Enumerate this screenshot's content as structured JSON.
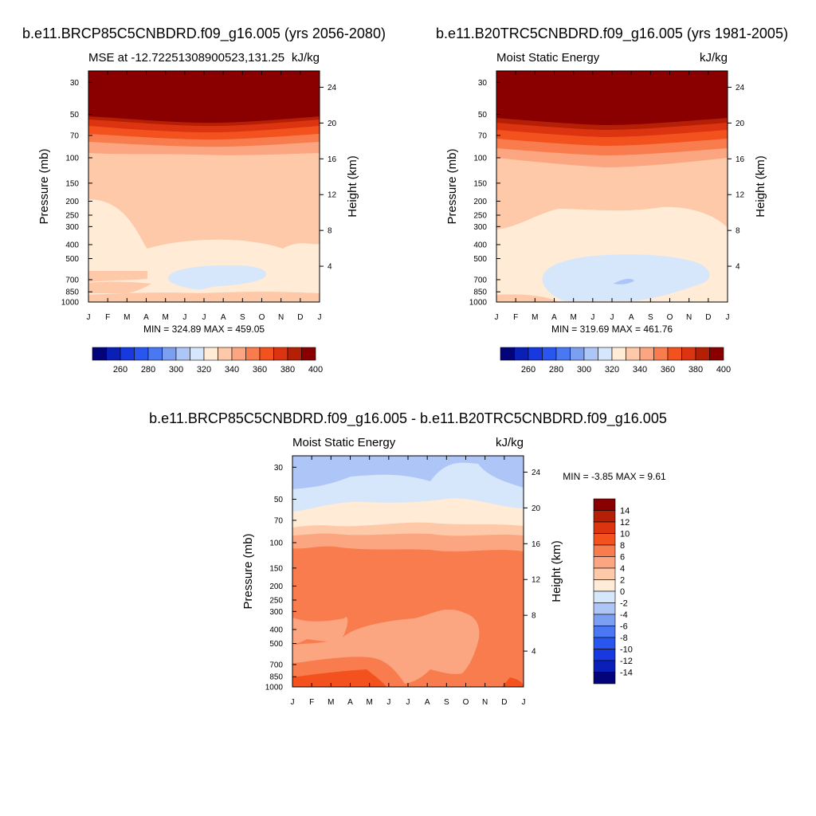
{
  "month_labels": [
    "J",
    "F",
    "M",
    "A",
    "M",
    "J",
    "J",
    "A",
    "S",
    "O",
    "N",
    "D",
    "J"
  ],
  "pressure_ticks": [
    30,
    50,
    70,
    100,
    150,
    200,
    250,
    300,
    400,
    500,
    700,
    850,
    1000
  ],
  "pressure_tick_labels": [
    "30",
    "50",
    "70",
    "100",
    "150",
    "200",
    "250",
    "300",
    "400",
    "500",
    "700",
    "850",
    "1000"
  ],
  "height_ticks": [
    24,
    20,
    16,
    12,
    8,
    4
  ],
  "height_tick_labels": [
    "24",
    "20",
    "16",
    "12",
    "8",
    "4"
  ],
  "chart_data": [
    {
      "id": "panel-rcp85",
      "type": "contour",
      "title": "b.e11.BRCP85C5CNBDRD.f09_g16.005 (yrs 2056-2080)",
      "left_label": "MSE at -12.72251308900523,131.25",
      "units": "kJ/kg",
      "ylabel": "Pressure (mb)",
      "ylabel_right": "Height (km)",
      "stats": "MIN = 324.89 MAX = 459.05",
      "levels": [
        250,
        260,
        270,
        280,
        290,
        300,
        310,
        320,
        330,
        340,
        350,
        360,
        370,
        380,
        390,
        400
      ],
      "colorbar_labels": [
        "260",
        "280",
        "300",
        "320",
        "340",
        "360",
        "380",
        "400"
      ],
      "colors": [
        "#03037a",
        "#0a1fb8",
        "#1838e0",
        "#2a56f0",
        "#4a78f2",
        "#7d9ff2",
        "#aec6f7",
        "#d6e6fb",
        "#ffebd6",
        "#fdc9a8",
        "#fba680",
        "#f97c4e",
        "#f3521f",
        "#dc3410",
        "#b51f05",
        "#8a0000"
      ],
      "region_values": {
        "top": "> 400",
        "upper_band": "350-400",
        "mid": "340-350",
        "low": "330-340",
        "pool": "320-330",
        "surface": "340-350"
      }
    },
    {
      "id": "panel-b20tr",
      "type": "contour",
      "title": "b.e11.B20TRC5CNBDRD.f09_g16.005 (yrs 1981-2005)",
      "left_label": "Moist Static Energy",
      "units": "kJ/kg",
      "ylabel": "Pressure (mb)",
      "ylabel_right": "Height (km)",
      "stats": "MIN = 319.69 MAX = 461.76",
      "levels": [
        250,
        260,
        270,
        280,
        290,
        300,
        310,
        320,
        330,
        340,
        350,
        360,
        370,
        380,
        390,
        400
      ],
      "colorbar_labels": [
        "260",
        "280",
        "300",
        "320",
        "340",
        "360",
        "380",
        "400"
      ],
      "colors": [
        "#03037a",
        "#0a1fb8",
        "#1838e0",
        "#2a56f0",
        "#4a78f2",
        "#7d9ff2",
        "#aec6f7",
        "#d6e6fb",
        "#ffebd6",
        "#fdc9a8",
        "#fba680",
        "#f97c4e",
        "#f3521f",
        "#dc3410",
        "#b51f05",
        "#8a0000"
      ],
      "region_values": {
        "top": "> 400",
        "upper_band": "350-400",
        "mid": "340-350",
        "low": "330-340",
        "pool": "320-330"
      }
    },
    {
      "id": "panel-diff",
      "type": "contour",
      "title": "b.e11.BRCP85C5CNBDRD.f09_g16.005 - b.e11.B20TRC5CNBDRD.f09_g16.005",
      "left_label": "Moist Static Energy",
      "units": "kJ/kg",
      "ylabel": "Pressure (mb)",
      "ylabel_right": "Height (km)",
      "stats": "MIN =  -3.85 MAX =   9.61",
      "levels": [
        -14,
        -12,
        -10,
        -8,
        -6,
        -4,
        -2,
        0,
        2,
        4,
        6,
        8,
        10,
        12,
        14
      ],
      "colorbar_labels": [
        "14",
        "12",
        "10",
        "8",
        "6",
        "4",
        "2",
        "0",
        "-2",
        "-4",
        "-6",
        "-8",
        "-10",
        "-12",
        "-14"
      ],
      "colors": [
        "#03037a",
        "#0a1fb8",
        "#1838e0",
        "#2a56f0",
        "#4a78f2",
        "#7d9ff2",
        "#aec6f7",
        "#d6e6fb",
        "#ffebd6",
        "#fdc9a8",
        "#fba680",
        "#f97c4e",
        "#f3521f",
        "#dc3410",
        "#b51f05",
        "#8a0000"
      ],
      "region_values": {
        "top": "-2 to 0",
        "tropopause": "0 to 6",
        "upper_trop": "6 to 8",
        "mid": "4 to 6",
        "low": "8 to 10"
      }
    }
  ]
}
